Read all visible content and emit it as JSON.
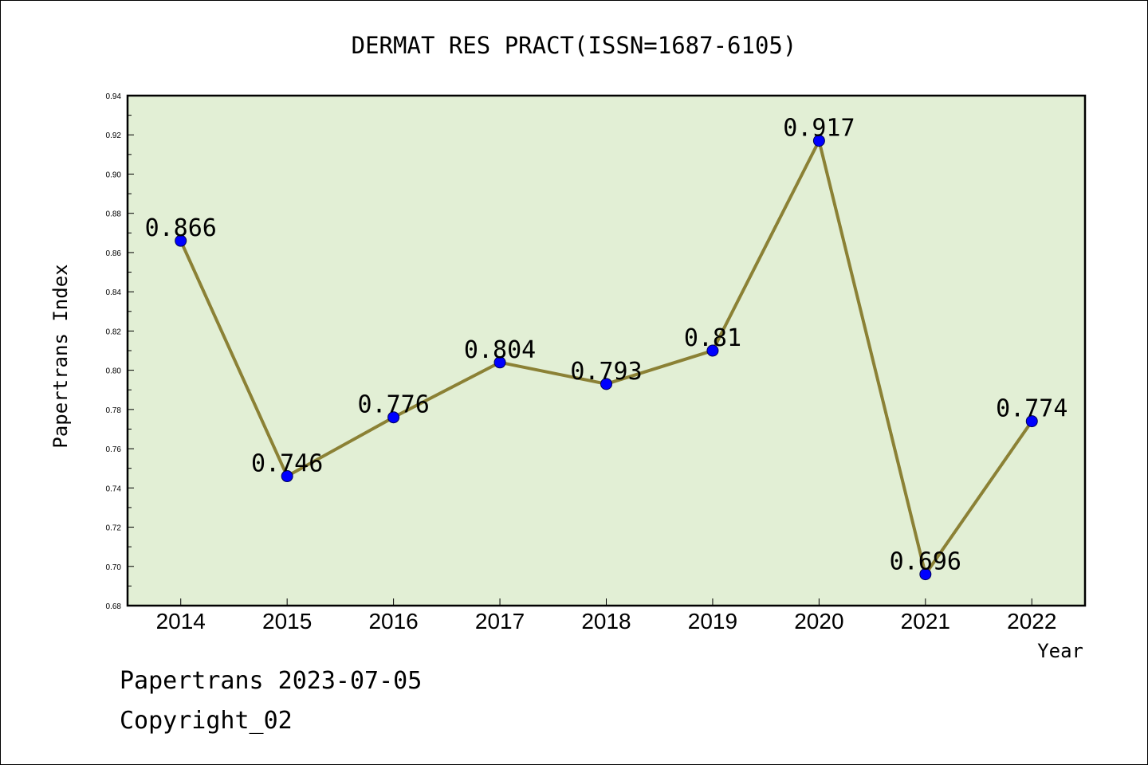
{
  "chart_data": {
    "type": "line",
    "title": "DERMAT RES PRACT(ISSN=1687-6105)",
    "xlabel": "Year",
    "ylabel": "Papertrans Index",
    "ylim": [
      0.68,
      0.94
    ],
    "yticks": [
      "0.68",
      "0.70",
      "0.72",
      "0.74",
      "0.76",
      "0.78",
      "0.80",
      "0.82",
      "0.84",
      "0.86",
      "0.88",
      "0.90",
      "0.92",
      "0.94"
    ],
    "categories": [
      "2014",
      "2015",
      "2016",
      "2017",
      "2018",
      "2019",
      "2020",
      "2021",
      "2022"
    ],
    "values": [
      0.866,
      0.746,
      0.776,
      0.804,
      0.793,
      0.81,
      0.917,
      0.696,
      0.774
    ],
    "data_labels": [
      "0.866",
      "0.746",
      "0.776",
      "0.804",
      "0.793",
      "0.81",
      "0.917",
      "0.696",
      "0.774"
    ],
    "grid": false,
    "colors": {
      "plot_background": "#e2efd5",
      "line": "#8b8135",
      "marker": "#0000ff",
      "frame": "#000000"
    }
  },
  "footer": {
    "date_line": "Papertrans 2023-07-05",
    "copyright_line": "Copyright_02"
  }
}
